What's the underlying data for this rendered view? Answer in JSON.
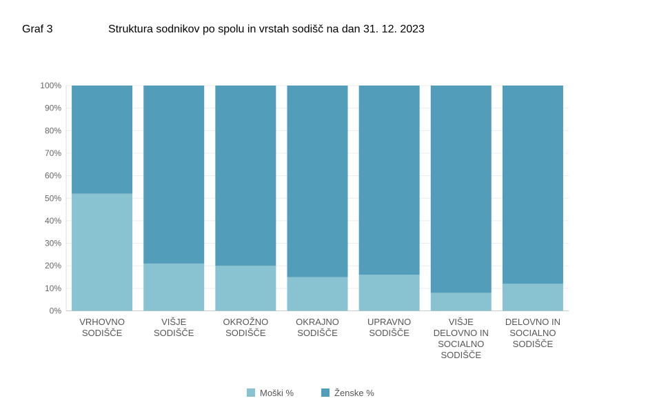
{
  "header": {
    "label": "Graf 3",
    "title": "Struktura sodnikov po spolu in vrstah sodišč na dan 31. 12. 2023"
  },
  "chart_data": {
    "type": "bar",
    "stacked": true,
    "percent": true,
    "categories": [
      [
        "VRHOVNO",
        "SODIŠČE"
      ],
      [
        "VIŠJE",
        "SODIŠČE"
      ],
      [
        "OKROŽNO",
        "SODIŠČE"
      ],
      [
        "OKRAJNO",
        "SODIŠČE"
      ],
      [
        "UPRAVNO",
        "SODIŠČE"
      ],
      [
        "VIŠJE",
        "DELOVNO IN",
        "SOCIALNO",
        "SODIŠČE"
      ],
      [
        "DELOVNO IN",
        "SOCIALNO",
        "SODIŠČE"
      ]
    ],
    "series": [
      {
        "name": "Moški %",
        "color": "#89c2d1",
        "values": [
          52,
          21,
          20,
          15,
          16,
          8,
          12
        ]
      },
      {
        "name": "Ženske %",
        "color": "#519dba",
        "values": [
          48,
          79,
          80,
          85,
          84,
          92,
          88
        ]
      }
    ],
    "ylim": [
      0,
      100
    ],
    "yticks": [
      "0%",
      "10%",
      "20%",
      "30%",
      "40%",
      "50%",
      "60%",
      "70%",
      "80%",
      "90%",
      "100%"
    ],
    "grid": true,
    "legend_position": "bottom"
  }
}
